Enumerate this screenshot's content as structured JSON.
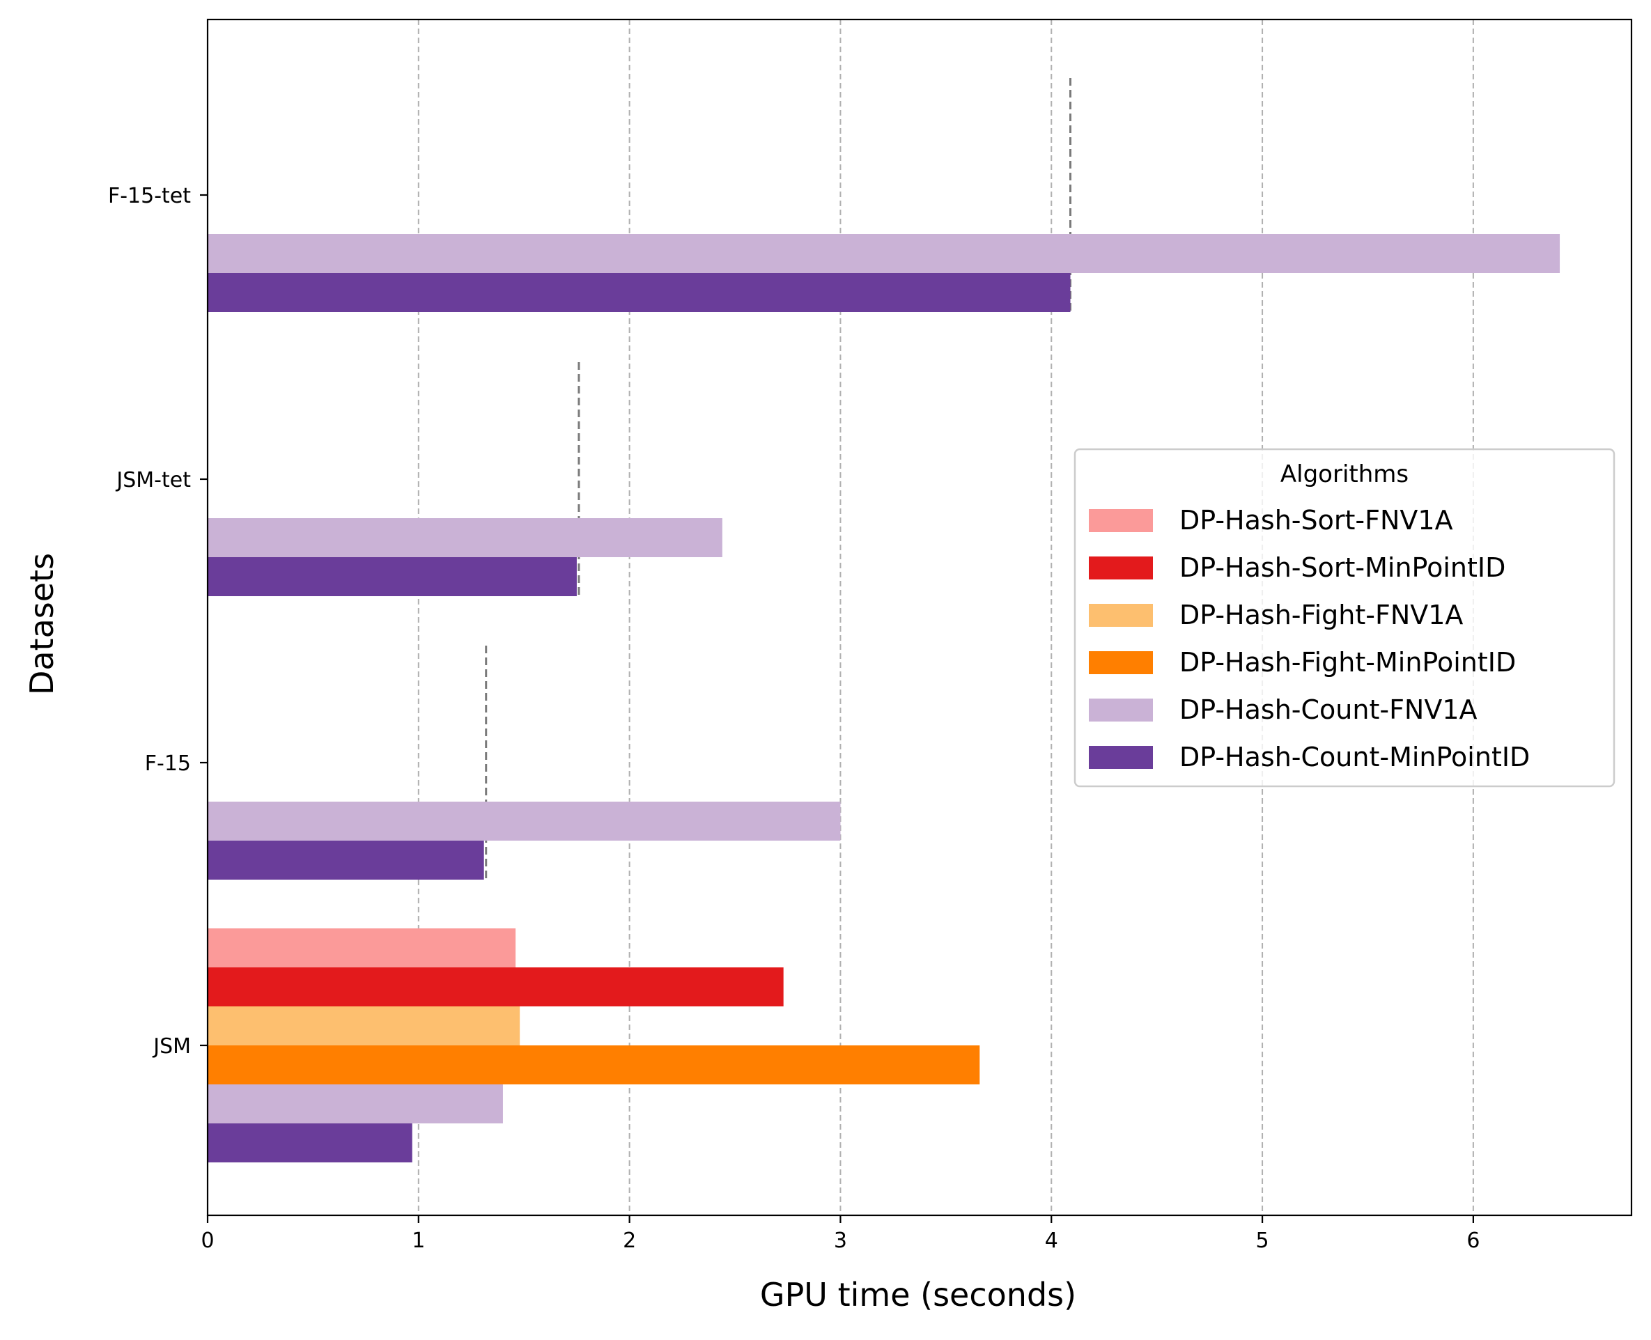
{
  "chart_data": {
    "type": "bar",
    "orientation": "horizontal",
    "xlabel": "GPU time (seconds)",
    "ylabel": "Datasets",
    "xlim": [
      0,
      6.75
    ],
    "x_ticks": [
      0,
      1,
      2,
      3,
      4,
      5,
      6
    ],
    "categories": [
      "JSM",
      "F-15",
      "JSM-tet",
      "F-15-tet"
    ],
    "series": [
      {
        "name": "DP-Hash-Sort-FNV1A",
        "color": "#fb9a99",
        "values": [
          1.46,
          null,
          null,
          null
        ]
      },
      {
        "name": "DP-Hash-Sort-MinPointID",
        "color": "#e31a1c",
        "values": [
          2.73,
          null,
          null,
          null
        ]
      },
      {
        "name": "DP-Hash-Fight-FNV1A",
        "color": "#fdbf6f",
        "values": [
          1.48,
          null,
          null,
          null
        ]
      },
      {
        "name": "DP-Hash-Fight-MinPointID",
        "color": "#ff7f00",
        "values": [
          3.66,
          null,
          null,
          null
        ]
      },
      {
        "name": "DP-Hash-Count-FNV1A",
        "color": "#cab2d6",
        "values": [
          1.4,
          3.0,
          2.44,
          6.41
        ]
      },
      {
        "name": "DP-Hash-Count-MinPointID",
        "color": "#6a3d9a",
        "values": [
          0.97,
          1.31,
          1.75,
          4.09
        ]
      }
    ],
    "reference_lines": [
      0.96,
      1.32,
      1.76,
      4.09
    ],
    "grid": {
      "x": true,
      "y": false,
      "style": "dashed"
    },
    "legend": {
      "title": "Algorithms",
      "placement": "center-right"
    }
  }
}
